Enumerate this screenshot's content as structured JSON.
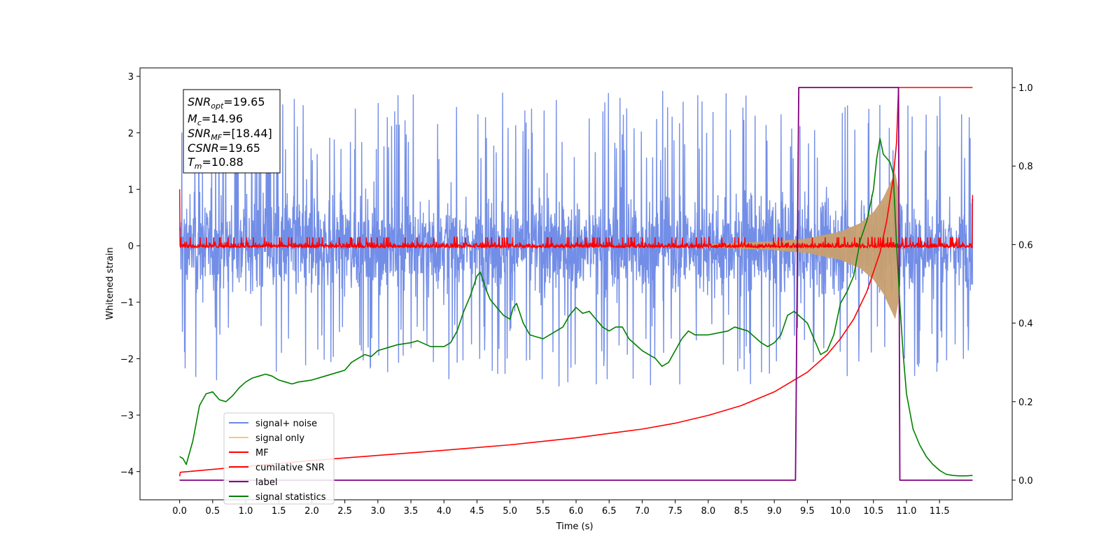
{
  "chart_data": {
    "type": "line",
    "xlabel": "Time (s)",
    "ylabel": "Whitened strain",
    "xlim": [
      -0.6,
      12.6
    ],
    "ylim": [
      -4.5,
      3.15
    ],
    "y2lim": [
      -0.05,
      1.05
    ],
    "xticks": [
      "0.0",
      "0.5",
      "1.0",
      "1.5",
      "2.0",
      "2.5",
      "3.0",
      "3.5",
      "4.0",
      "4.5",
      "5.0",
      "5.5",
      "6.0",
      "6.5",
      "7.0",
      "7.5",
      "8.0",
      "8.5",
      "9.0",
      "9.5",
      "10.0",
      "10.5",
      "11.0",
      "11.5"
    ],
    "yticks": [
      "−4",
      "−3",
      "−2",
      "−1",
      "0",
      "1",
      "2",
      "3"
    ],
    "y2ticks": [
      "0.0",
      "0.2",
      "0.4",
      "0.6",
      "0.8",
      "1.0"
    ],
    "annotation": {
      "snr_opt": "=19.65",
      "mc": "=14.96",
      "snr_mf": "=[18.44]",
      "csnr": "=19.65",
      "tm": "=10.88"
    },
    "legend_position": "lower-left",
    "colors": {
      "signal_noise": "#6b88e6",
      "signal_only": "#f5c97a",
      "mf": "#ff0000",
      "cumulative_snr": "#ff0000",
      "label": "#800080",
      "signal_statistics": "#008000",
      "chirp_fill": "#c8a070"
    },
    "series": [
      {
        "name": "signal+ noise",
        "axis": "left",
        "kind": "noise-band",
        "x_range": [
          0.0,
          12.0
        ],
        "typical_range": [
          -1.3,
          1.3
        ],
        "spike_range": [
          -2.5,
          2.75
        ]
      },
      {
        "name": "signal only",
        "axis": "left",
        "kind": "chirp",
        "x_range": [
          8.0,
          10.88
        ],
        "envelope": [
          [
            8.0,
            0.03
          ],
          [
            9.0,
            0.08
          ],
          [
            9.5,
            0.13
          ],
          [
            10.0,
            0.25
          ],
          [
            10.3,
            0.4
          ],
          [
            10.5,
            0.6
          ],
          [
            10.65,
            0.85
          ],
          [
            10.75,
            1.1
          ],
          [
            10.83,
            1.3
          ],
          [
            10.88,
            1.0
          ]
        ]
      },
      {
        "name": "MF",
        "axis": "left",
        "kind": "noise-band",
        "x_range": [
          0.0,
          12.0
        ],
        "typical_range": [
          -0.07,
          0.1
        ],
        "edge_values": [
          1.0,
          0.9
        ]
      },
      {
        "name": "cumilative SNR",
        "axis": "right",
        "x": [
          0.0,
          0.01,
          1.0,
          2.0,
          3.0,
          4.0,
          5.0,
          6.0,
          7.0,
          7.5,
          8.0,
          8.5,
          9.0,
          9.5,
          9.8,
          10.0,
          10.2,
          10.4,
          10.6,
          10.7,
          10.8,
          10.85,
          10.88,
          12.0
        ],
        "y": [
          0.01,
          0.02,
          0.035,
          0.05,
          0.063,
          0.076,
          0.09,
          0.108,
          0.13,
          0.145,
          0.165,
          0.19,
          0.225,
          0.275,
          0.32,
          0.36,
          0.41,
          0.48,
          0.58,
          0.66,
          0.77,
          0.86,
          1.0,
          1.0
        ]
      },
      {
        "name": "label",
        "axis": "right",
        "x": [
          0.0,
          9.32,
          9.37,
          10.88,
          10.9,
          12.0
        ],
        "y": [
          0.0,
          0.0,
          1.0,
          1.0,
          0.0,
          0.0
        ]
      },
      {
        "name": "signal statistics",
        "axis": "right",
        "x": [
          0.0,
          0.05,
          0.1,
          0.2,
          0.3,
          0.4,
          0.5,
          0.6,
          0.7,
          0.8,
          0.9,
          1.0,
          1.1,
          1.2,
          1.3,
          1.4,
          1.5,
          1.6,
          1.7,
          1.8,
          2.0,
          2.2,
          2.4,
          2.5,
          2.6,
          2.7,
          2.8,
          2.9,
          3.0,
          3.2,
          3.3,
          3.5,
          3.6,
          3.8,
          4.0,
          4.1,
          4.2,
          4.3,
          4.4,
          4.5,
          4.55,
          4.65,
          4.7,
          4.8,
          4.9,
          5.0,
          5.05,
          5.1,
          5.2,
          5.3,
          5.5,
          5.6,
          5.8,
          5.9,
          6.0,
          6.1,
          6.2,
          6.3,
          6.4,
          6.5,
          6.6,
          6.7,
          6.8,
          7.0,
          7.2,
          7.3,
          7.4,
          7.5,
          7.6,
          7.7,
          7.8,
          8.0,
          8.3,
          8.4,
          8.6,
          8.8,
          8.9,
          9.0,
          9.1,
          9.2,
          9.3,
          9.5,
          9.6,
          9.7,
          9.8,
          9.9,
          10.0,
          10.1,
          10.2,
          10.3,
          10.4,
          10.5,
          10.55,
          10.6,
          10.65,
          10.7,
          10.75,
          10.8,
          10.85,
          10.9,
          10.95,
          11.0,
          11.1,
          11.2,
          11.3,
          11.4,
          11.5,
          11.6,
          11.7,
          11.8,
          11.9,
          12.0
        ],
        "y": [
          0.06,
          0.055,
          0.04,
          0.1,
          0.19,
          0.22,
          0.225,
          0.205,
          0.2,
          0.215,
          0.235,
          0.25,
          0.26,
          0.265,
          0.27,
          0.265,
          0.255,
          0.25,
          0.245,
          0.25,
          0.255,
          0.265,
          0.275,
          0.28,
          0.3,
          0.31,
          0.32,
          0.315,
          0.33,
          0.34,
          0.345,
          0.35,
          0.355,
          0.34,
          0.34,
          0.35,
          0.38,
          0.43,
          0.47,
          0.52,
          0.53,
          0.48,
          0.46,
          0.44,
          0.42,
          0.41,
          0.44,
          0.45,
          0.4,
          0.37,
          0.36,
          0.37,
          0.39,
          0.42,
          0.44,
          0.425,
          0.43,
          0.41,
          0.39,
          0.38,
          0.39,
          0.39,
          0.36,
          0.33,
          0.31,
          0.29,
          0.3,
          0.33,
          0.36,
          0.38,
          0.37,
          0.37,
          0.38,
          0.39,
          0.38,
          0.35,
          0.34,
          0.35,
          0.37,
          0.42,
          0.43,
          0.4,
          0.36,
          0.32,
          0.33,
          0.37,
          0.45,
          0.48,
          0.52,
          0.61,
          0.66,
          0.74,
          0.82,
          0.87,
          0.83,
          0.82,
          0.81,
          0.78,
          0.6,
          0.45,
          0.32,
          0.22,
          0.13,
          0.09,
          0.06,
          0.04,
          0.025,
          0.015,
          0.012,
          0.011,
          0.011,
          0.012
        ]
      }
    ]
  }
}
